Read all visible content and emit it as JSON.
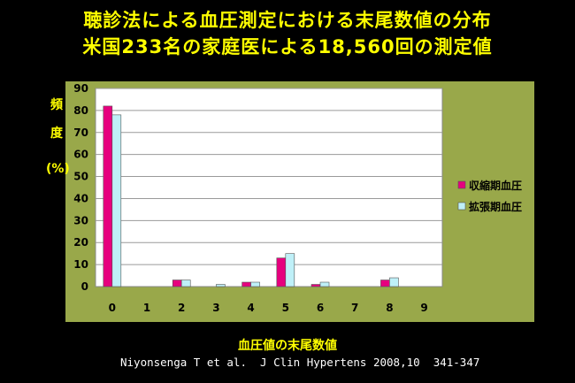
{
  "title_line1": "聴診法による血圧測定における末尾数値の分布",
  "title_line2": "米国233名の家庭医による18,560回の測定値",
  "citation": "Niyonsenga T et al.  J Clin Hypertens 2008,10  341-347",
  "colors": {
    "background": "#000000",
    "title": "#ffff00",
    "panel": "#99a84a",
    "plot_area": "#ffffff",
    "systolic": "#e6007e",
    "diastolic": "#bff0f8"
  },
  "chart_data": {
    "type": "bar",
    "ylabel": [
      "頻",
      "度",
      "(%)"
    ],
    "xlabel": "血圧値の末尾数値",
    "categories": [
      "0",
      "1",
      "2",
      "3",
      "4",
      "5",
      "6",
      "7",
      "8",
      "9"
    ],
    "ylim": [
      0,
      90
    ],
    "yticks": [
      0,
      10,
      20,
      30,
      40,
      50,
      60,
      70,
      80,
      90
    ],
    "grid": true,
    "legend_position": "right",
    "series": [
      {
        "name": "収縮期血圧",
        "color": "#e6007e",
        "values": [
          82,
          0,
          3,
          0,
          2,
          13,
          1,
          0,
          3,
          0
        ]
      },
      {
        "name": "拡張期血圧",
        "color": "#bff0f8",
        "values": [
          78,
          0,
          3,
          1,
          2,
          15,
          2,
          0,
          4,
          0
        ]
      }
    ]
  }
}
